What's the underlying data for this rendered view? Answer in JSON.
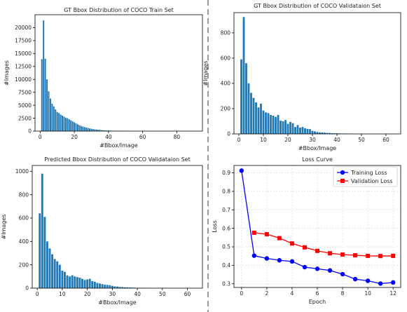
{
  "figure": {
    "divider_color": "#808080"
  },
  "chart_data": [
    {
      "type": "bar",
      "title": "GT Bbox Distribution of COCO Train Set",
      "xlabel": "#Bbox/Image",
      "ylabel": "#Images",
      "xlim": [
        -3,
        95
      ],
      "ylim": [
        0,
        22500
      ],
      "xticks": [
        0,
        20,
        40,
        60,
        80
      ],
      "yticks": [
        0,
        2500,
        5000,
        7500,
        10000,
        12500,
        15000,
        17500,
        20000
      ],
      "grid": false,
      "color": "#1f77b4",
      "x": [
        1,
        2,
        3,
        4,
        5,
        6,
        7,
        8,
        9,
        10,
        11,
        12,
        13,
        14,
        15,
        16,
        17,
        18,
        19,
        20,
        21,
        22,
        23,
        24,
        25,
        26,
        27,
        28,
        29,
        30,
        31,
        32,
        33,
        34,
        35,
        36,
        37,
        38,
        39,
        40,
        41,
        42,
        43,
        44,
        45,
        46,
        47,
        48,
        49,
        50
      ],
      "values": [
        13900,
        21400,
        14000,
        10000,
        7700,
        6300,
        5300,
        4800,
        4200,
        3700,
        3500,
        3200,
        3000,
        2800,
        2600,
        2500,
        2300,
        2100,
        1900,
        1700,
        1500,
        1300,
        1150,
        1000,
        880,
        780,
        680,
        600,
        520,
        450,
        390,
        340,
        300,
        260,
        225,
        195,
        170,
        145,
        125,
        110,
        95,
        80,
        70,
        60,
        52,
        45,
        38,
        32,
        28,
        24
      ]
    },
    {
      "type": "bar",
      "title": "GT Bbox Distribution of COCO Validataion Set",
      "xlabel": "#Bbox/Image",
      "ylabel": "#Images",
      "xlim": [
        -2,
        66
      ],
      "ylim": [
        0,
        960
      ],
      "xticks": [
        0,
        10,
        20,
        30,
        40,
        50,
        60
      ],
      "yticks": [
        0,
        200,
        400,
        600,
        800
      ],
      "grid": false,
      "color": "#1f77b4",
      "x": [
        1,
        2,
        3,
        4,
        5,
        6,
        7,
        8,
        9,
        10,
        11,
        12,
        13,
        14,
        15,
        16,
        17,
        18,
        19,
        20,
        21,
        22,
        23,
        24,
        25,
        26,
        27,
        28,
        29,
        30,
        31,
        32,
        33,
        34,
        35,
        36,
        37,
        38,
        39,
        40,
        41,
        42,
        43,
        44,
        45
      ],
      "values": [
        590,
        925,
        560,
        400,
        325,
        285,
        250,
        210,
        240,
        185,
        170,
        165,
        150,
        145,
        135,
        150,
        105,
        100,
        110,
        80,
        95,
        85,
        55,
        70,
        50,
        55,
        45,
        40,
        38,
        25,
        20,
        15,
        12,
        12,
        10,
        8,
        7,
        6,
        5,
        5,
        4,
        3,
        2,
        2,
        1
      ]
    },
    {
      "type": "bar",
      "title": "Predicted Bbox Distribution of COCO Validataion Set",
      "xlabel": "#Bbox/Image",
      "ylabel": "#Images",
      "xlim": [
        -2,
        66
      ],
      "ylim": [
        0,
        1050
      ],
      "xticks": [
        0,
        10,
        20,
        30,
        40,
        50,
        60
      ],
      "yticks": [
        0,
        200,
        400,
        600,
        800,
        1000
      ],
      "grid": false,
      "color": "#1f77b4",
      "x": [
        1,
        2,
        3,
        4,
        5,
        6,
        7,
        8,
        9,
        10,
        11,
        12,
        13,
        14,
        15,
        16,
        17,
        18,
        19,
        20,
        21,
        22,
        23,
        24,
        25,
        26,
        27,
        28,
        29,
        30,
        31,
        32,
        33,
        34,
        35,
        36,
        37,
        38,
        39,
        40,
        41,
        42,
        43,
        44,
        45
      ],
      "values": [
        640,
        980,
        610,
        400,
        340,
        290,
        250,
        230,
        200,
        150,
        140,
        110,
        100,
        110,
        100,
        95,
        90,
        80,
        70,
        75,
        80,
        60,
        55,
        45,
        40,
        35,
        30,
        28,
        25,
        20,
        15,
        14,
        10,
        9,
        8,
        7,
        6,
        5,
        4,
        3,
        3,
        2,
        2,
        1,
        1
      ]
    },
    {
      "type": "line",
      "title": "Loss Curve",
      "xlabel": "Epoch",
      "ylabel": "Loss",
      "xlim": [
        -0.6,
        12.6
      ],
      "ylim": [
        0.28,
        0.94
      ],
      "xticks": [
        0,
        2,
        4,
        6,
        8,
        10,
        12
      ],
      "yticks": [
        0.3,
        0.4,
        0.5,
        0.6,
        0.7,
        0.8,
        0.9
      ],
      "grid": true,
      "legend_position": "top-right",
      "series": [
        {
          "name": "Training Loss",
          "color": "#0000ff",
          "marker": "circle",
          "x": [
            0,
            1,
            2,
            3,
            4,
            5,
            6,
            7,
            8,
            9,
            10,
            11,
            12
          ],
          "values": [
            0.912,
            0.452,
            0.437,
            0.427,
            0.421,
            0.39,
            0.381,
            0.372,
            0.352,
            0.325,
            0.316,
            0.301,
            0.307
          ]
        },
        {
          "name": "Validation Loss",
          "color": "#ff0000",
          "marker": "square",
          "x": [
            1,
            2,
            3,
            4,
            5,
            6,
            7,
            8,
            9,
            10,
            11,
            12
          ],
          "values": [
            0.576,
            0.568,
            0.547,
            0.518,
            0.497,
            0.478,
            0.465,
            0.458,
            0.454,
            0.451,
            0.45,
            0.451
          ]
        }
      ]
    }
  ]
}
